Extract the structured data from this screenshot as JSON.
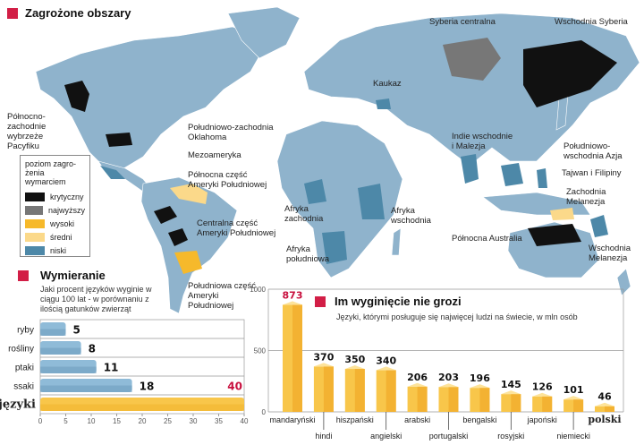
{
  "map": {
    "title": "Zagrożone obszary",
    "legend": {
      "title": "poziom zagro-żenia wymarciem",
      "items": [
        {
          "label": "krytyczny",
          "color": "#111111"
        },
        {
          "label": "najwyższy",
          "color": "#777777"
        },
        {
          "label": "wysoki",
          "color": "#f6b92b"
        },
        {
          "label": "średni",
          "color": "#fbd98a"
        },
        {
          "label": "niski",
          "color": "#4d88a8"
        }
      ]
    },
    "regions": [
      "Syberia centralna",
      "Wschodnia Syberia",
      "Północno-zachodnie wybrzeże Pacyfiku",
      "Południowo-zachodnia Oklahoma",
      "Mezoameryka",
      "Północna część Ameryki Południowej",
      "Centralna część Ameryki Południowej",
      "Południowa część Ameryki Południowej",
      "Kaukaz",
      "Indie wschodnie i Malezja",
      "Południowo-wschodnia Azja",
      "Tajwan i Filipiny",
      "Zachodnia Melanezja",
      "Afryka zachodnia",
      "Afryka wschodnia",
      "Afryka południowa",
      "Północna Australia",
      "Wschodnia Melanezja"
    ]
  },
  "chart_data": [
    {
      "type": "bar",
      "orientation": "horizontal",
      "title": "Wymieranie",
      "subtitle": "Jaki procent języków wyginie w ciągu 100 lat - w porównaniu z ilością gatunków zwierząt",
      "categories": [
        "ryby",
        "rośliny",
        "ptaki",
        "ssaki",
        "języki"
      ],
      "values": [
        5,
        8,
        11,
        18,
        40
      ],
      "xlim": [
        0,
        40
      ],
      "xticks": [
        "0",
        "5",
        "10",
        "15",
        "20",
        "25",
        "30",
        "35",
        "40"
      ],
      "colors": {
        "animals": "#8fbbd8",
        "languages": "#f8c64a",
        "highlight_label": "#c8103e"
      }
    },
    {
      "type": "bar",
      "title": "Im wyginięcie nie grozi",
      "subtitle": "Języki, którymi posługuje się najwięcej ludzi na świecie, w mln osób",
      "categories": [
        "mandaryński",
        "hindi",
        "hiszpański",
        "angielski",
        "arabski",
        "portugalski",
        "bengalski",
        "rosyjski",
        "japoński",
        "niemiecki",
        "polski"
      ],
      "values": [
        873,
        370,
        350,
        340,
        206,
        203,
        196,
        145,
        126,
        101,
        46
      ],
      "ylim": [
        0,
        1000
      ],
      "yticks": [
        "0",
        "500",
        "1000"
      ],
      "colors": {
        "bar": "#f8c64a",
        "highlight_label": "#c8103e"
      }
    }
  ]
}
